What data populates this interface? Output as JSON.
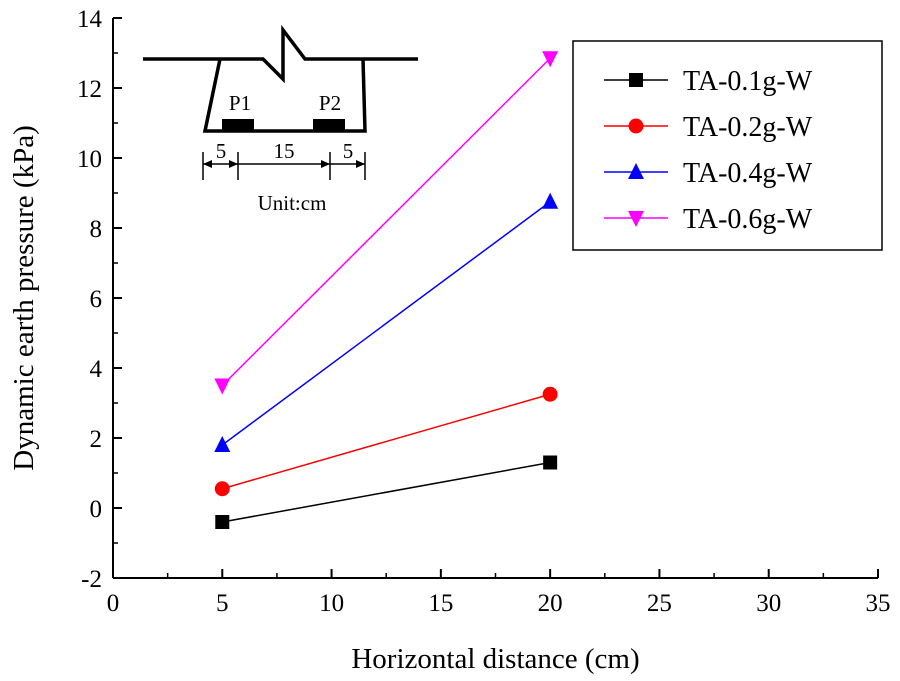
{
  "chart_data": {
    "type": "line",
    "title": "",
    "xlabel": "Horizontal distance (cm)",
    "ylabel": "Dynamic earth pressure (kPa)",
    "xlim": [
      0,
      35
    ],
    "ylim": [
      -2,
      14
    ],
    "xticks": [
      0,
      5,
      10,
      15,
      20,
      25,
      30,
      35
    ],
    "yticks": [
      -2,
      0,
      2,
      4,
      6,
      8,
      10,
      12,
      14
    ],
    "x": [
      5,
      20
    ],
    "grid": false,
    "legend_position": "top-right",
    "series": [
      {
        "name": "TA-0.1g-W",
        "values": [
          -0.4,
          1.3
        ],
        "color": "#000000",
        "marker": "square"
      },
      {
        "name": "TA-0.2g-W",
        "values": [
          0.55,
          3.25
        ],
        "color": "#ff0000",
        "marker": "circle"
      },
      {
        "name": "TA-0.4g-W",
        "values": [
          1.8,
          8.75
        ],
        "color": "#0000ff",
        "marker": "triangle-up"
      },
      {
        "name": "TA-0.6g-W",
        "values": [
          3.5,
          12.85
        ],
        "color": "#ff00ff",
        "marker": "triangle-down"
      }
    ],
    "inset": {
      "sensor_labels": [
        "P1",
        "P2"
      ],
      "dimensions": [
        "5",
        "15",
        "5"
      ],
      "unit": "Unit:cm"
    }
  }
}
